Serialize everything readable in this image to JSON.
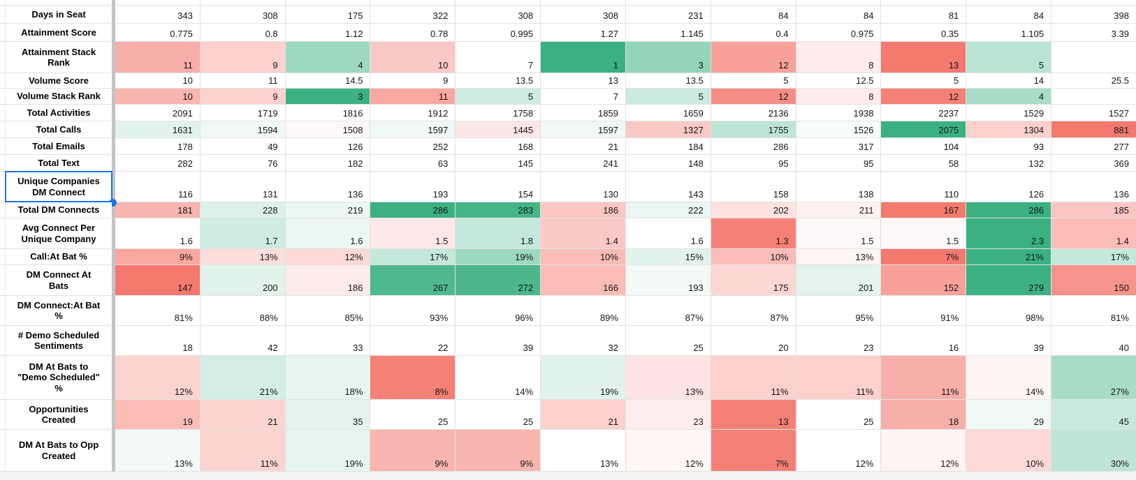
{
  "table": {
    "columns": 12,
    "selected_row_index": 9,
    "selected_row_label": "Unique Companies\nDM Connect",
    "colors": {
      "heat_red_max": "#f4796f",
      "heat_green_max": "#3bb181",
      "gridline": "#e2e2e2",
      "frozen_divider": "#c4c4c4",
      "selection_blue": "#1b73e8",
      "gutter_gray": "#f1f3f4"
    },
    "rows": [
      {
        "label": "Days in Seat",
        "values": [
          "343",
          "308",
          "175",
          "322",
          "308",
          "308",
          "231",
          "84",
          "84",
          "81",
          "84",
          "398"
        ],
        "heat": null
      },
      {
        "label": "Attainment Score",
        "values": [
          "0.775",
          "0.8",
          "1.12",
          "0.78",
          "0.995",
          "1.27",
          "1.145",
          "0.4",
          "0.975",
          "0.35",
          "1.105",
          "3.39"
        ],
        "heat": null
      },
      {
        "label": "Attainment Stack\nRank",
        "values": [
          "11",
          "9",
          "4",
          "10",
          "7",
          "1",
          "3",
          "12",
          "8",
          "13",
          "5",
          ""
        ],
        "heat": [
          -0.6,
          -0.35,
          0.5,
          -0.4,
          0,
          1,
          0.55,
          -0.7,
          -0.14,
          -1,
          0.35,
          0
        ]
      },
      {
        "label": "Volume Score",
        "values": [
          "10",
          "11",
          "14.5",
          "9",
          "13.5",
          "13",
          "13.5",
          "5",
          "12.5",
          "5",
          "14",
          "25.5"
        ],
        "heat": null
      },
      {
        "label": "Volume Stack Rank",
        "values": [
          "10",
          "9",
          "3",
          "11",
          "5",
          "7",
          "5",
          "12",
          "8",
          "12",
          "4",
          ""
        ],
        "heat": [
          -0.55,
          -0.35,
          1,
          -0.65,
          0.25,
          0,
          0.27,
          -0.85,
          -0.14,
          -0.95,
          0.45,
          0
        ]
      },
      {
        "label": "Total Activities",
        "values": [
          "2091",
          "1719",
          "1816",
          "1912",
          "1758",
          "1859",
          "1659",
          "2136",
          "1938",
          "2237",
          "1529",
          "1527"
        ],
        "heat": null
      },
      {
        "label": "Total Calls",
        "values": [
          "1631",
          "1594",
          "1508",
          "1597",
          "1445",
          "1597",
          "1327",
          "1755",
          "1526",
          "2075",
          "1304",
          "881"
        ],
        "heat": [
          0.15,
          0.08,
          -0.05,
          0.08,
          -0.18,
          0.08,
          -0.4,
          0.33,
          0.04,
          1,
          -0.35,
          -1
        ]
      },
      {
        "label": "Total Emails",
        "values": [
          "178",
          "49",
          "126",
          "252",
          "168",
          "21",
          "184",
          "286",
          "317",
          "104",
          "93",
          "277"
        ],
        "heat": null
      },
      {
        "label": "Total Text",
        "values": [
          "282",
          "76",
          "182",
          "63",
          "145",
          "241",
          "148",
          "95",
          "95",
          "58",
          "132",
          "369"
        ],
        "heat": null
      },
      {
        "label": "Unique Companies\nDM Connect",
        "values": [
          "116",
          "131",
          "136",
          "193",
          "154",
          "130",
          "143",
          "158",
          "138",
          "110",
          "126",
          "136"
        ],
        "heat": null
      },
      {
        "label": "Total DM Connects",
        "values": [
          "181",
          "228",
          "219",
          "286",
          "283",
          "186",
          "222",
          "202",
          "211",
          "167",
          "286",
          "185"
        ],
        "heat": [
          -0.55,
          0.18,
          0.1,
          1,
          0.95,
          -0.42,
          0.11,
          -0.22,
          -0.1,
          -1,
          1,
          -0.43
        ]
      },
      {
        "label": "Avg Connect Per\nUnique Company",
        "values": [
          "1.6",
          "1.7",
          "1.6",
          "1.5",
          "1.8",
          "1.4",
          "1.6",
          "1.3",
          "1.5",
          "1.5",
          "2.3",
          "1.4"
        ],
        "heat": [
          0,
          0.25,
          0.1,
          -0.17,
          0.3,
          -0.4,
          0,
          -0.95,
          -0.05,
          -0.05,
          1,
          -0.5
        ]
      },
      {
        "label": "Call:At Bat %",
        "values": [
          "9%",
          "13%",
          "12%",
          "17%",
          "19%",
          "10%",
          "15%",
          "10%",
          "13%",
          "7%",
          "21%",
          "17%"
        ],
        "heat": [
          -0.65,
          -0.25,
          -0.28,
          0.3,
          0.5,
          -0.5,
          0.15,
          -0.5,
          -0.07,
          -1,
          1,
          0.3
        ]
      },
      {
        "label": "DM Connect At\nBats",
        "values": [
          "147",
          "200",
          "186",
          "267",
          "272",
          "166",
          "193",
          "175",
          "201",
          "152",
          "279",
          "150"
        ],
        "heat": [
          -1,
          0.15,
          -0.15,
          0.9,
          0.92,
          -0.5,
          0.06,
          -0.3,
          0.14,
          -0.7,
          1,
          -0.8
        ]
      },
      {
        "label": "DM Connect:At Bat\n%",
        "values": [
          "81%",
          "88%",
          "85%",
          "93%",
          "96%",
          "89%",
          "87%",
          "87%",
          "95%",
          "91%",
          "98%",
          "81%"
        ],
        "heat": null
      },
      {
        "label": "# Demo Scheduled\nSentiments",
        "values": [
          "18",
          "42",
          "33",
          "22",
          "39",
          "32",
          "25",
          "20",
          "23",
          "16",
          "39",
          "40"
        ],
        "heat": null
      },
      {
        "label": "DM At Bats to\n\"Demo Scheduled\"\n%",
        "values": [
          "12%",
          "21%",
          "18%",
          "8%",
          "14%",
          "19%",
          "13%",
          "11%",
          "11%",
          "11%",
          "14%",
          "27%"
        ],
        "heat": [
          -0.33,
          0.22,
          0.12,
          -0.95,
          0,
          0.15,
          -0.2,
          -0.35,
          -0.35,
          -0.6,
          -0.08,
          0.45
        ]
      },
      {
        "label": "Opportunities\nCreated",
        "values": [
          "19",
          "21",
          "35",
          "25",
          "25",
          "21",
          "23",
          "13",
          "25",
          "18",
          "29",
          "45"
        ],
        "heat": [
          -0.5,
          -0.33,
          0.14,
          0,
          0,
          -0.35,
          -0.12,
          -0.95,
          0,
          -0.6,
          0.08,
          0.28
        ]
      },
      {
        "label": "DM At Bats to Opp\nCreated",
        "values": [
          "13%",
          "11%",
          "19%",
          "9%",
          "9%",
          "13%",
          "12%",
          "7%",
          "12%",
          "12%",
          "10%",
          "30%"
        ],
        "heat": [
          0.06,
          -0.32,
          0.13,
          -0.55,
          -0.55,
          0,
          -0.06,
          -0.95,
          0,
          -0.08,
          -0.28,
          0.33
        ]
      }
    ]
  }
}
